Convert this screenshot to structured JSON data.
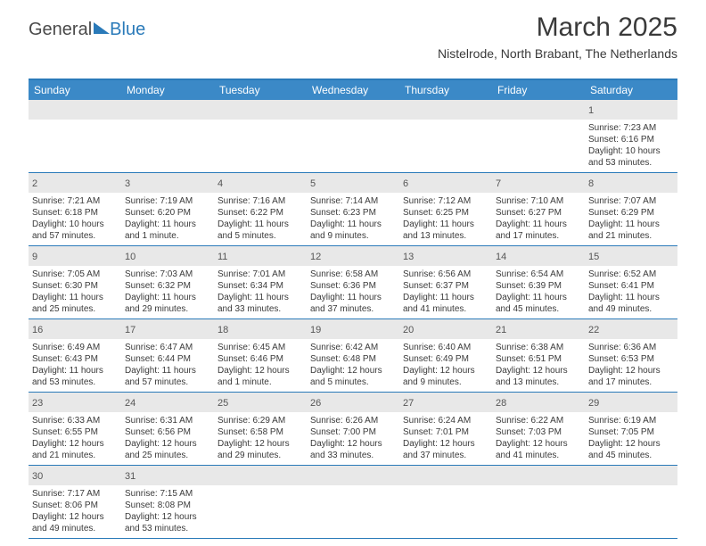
{
  "logo": {
    "text1": "General",
    "text2": "Blue"
  },
  "title": "March 2025",
  "location": "Nistelrode, North Brabant, The Netherlands",
  "day_headers": [
    "Sunday",
    "Monday",
    "Tuesday",
    "Wednesday",
    "Thursday",
    "Friday",
    "Saturday"
  ],
  "colors": {
    "accent": "#2a7ab9",
    "header_bg": "#3b89c7",
    "daynum_bg": "#e8e8e8",
    "text": "#3a3a3a"
  },
  "weeks": [
    [
      null,
      null,
      null,
      null,
      null,
      null,
      {
        "n": "1",
        "sr": "7:23 AM",
        "ss": "6:16 PM",
        "dl": "10 hours and 53 minutes."
      }
    ],
    [
      {
        "n": "2",
        "sr": "7:21 AM",
        "ss": "6:18 PM",
        "dl": "10 hours and 57 minutes."
      },
      {
        "n": "3",
        "sr": "7:19 AM",
        "ss": "6:20 PM",
        "dl": "11 hours and 1 minute."
      },
      {
        "n": "4",
        "sr": "7:16 AM",
        "ss": "6:22 PM",
        "dl": "11 hours and 5 minutes."
      },
      {
        "n": "5",
        "sr": "7:14 AM",
        "ss": "6:23 PM",
        "dl": "11 hours and 9 minutes."
      },
      {
        "n": "6",
        "sr": "7:12 AM",
        "ss": "6:25 PM",
        "dl": "11 hours and 13 minutes."
      },
      {
        "n": "7",
        "sr": "7:10 AM",
        "ss": "6:27 PM",
        "dl": "11 hours and 17 minutes."
      },
      {
        "n": "8",
        "sr": "7:07 AM",
        "ss": "6:29 PM",
        "dl": "11 hours and 21 minutes."
      }
    ],
    [
      {
        "n": "9",
        "sr": "7:05 AM",
        "ss": "6:30 PM",
        "dl": "11 hours and 25 minutes."
      },
      {
        "n": "10",
        "sr": "7:03 AM",
        "ss": "6:32 PM",
        "dl": "11 hours and 29 minutes."
      },
      {
        "n": "11",
        "sr": "7:01 AM",
        "ss": "6:34 PM",
        "dl": "11 hours and 33 minutes."
      },
      {
        "n": "12",
        "sr": "6:58 AM",
        "ss": "6:36 PM",
        "dl": "11 hours and 37 minutes."
      },
      {
        "n": "13",
        "sr": "6:56 AM",
        "ss": "6:37 PM",
        "dl": "11 hours and 41 minutes."
      },
      {
        "n": "14",
        "sr": "6:54 AM",
        "ss": "6:39 PM",
        "dl": "11 hours and 45 minutes."
      },
      {
        "n": "15",
        "sr": "6:52 AM",
        "ss": "6:41 PM",
        "dl": "11 hours and 49 minutes."
      }
    ],
    [
      {
        "n": "16",
        "sr": "6:49 AM",
        "ss": "6:43 PM",
        "dl": "11 hours and 53 minutes."
      },
      {
        "n": "17",
        "sr": "6:47 AM",
        "ss": "6:44 PM",
        "dl": "11 hours and 57 minutes."
      },
      {
        "n": "18",
        "sr": "6:45 AM",
        "ss": "6:46 PM",
        "dl": "12 hours and 1 minute."
      },
      {
        "n": "19",
        "sr": "6:42 AM",
        "ss": "6:48 PM",
        "dl": "12 hours and 5 minutes."
      },
      {
        "n": "20",
        "sr": "6:40 AM",
        "ss": "6:49 PM",
        "dl": "12 hours and 9 minutes."
      },
      {
        "n": "21",
        "sr": "6:38 AM",
        "ss": "6:51 PM",
        "dl": "12 hours and 13 minutes."
      },
      {
        "n": "22",
        "sr": "6:36 AM",
        "ss": "6:53 PM",
        "dl": "12 hours and 17 minutes."
      }
    ],
    [
      {
        "n": "23",
        "sr": "6:33 AM",
        "ss": "6:55 PM",
        "dl": "12 hours and 21 minutes."
      },
      {
        "n": "24",
        "sr": "6:31 AM",
        "ss": "6:56 PM",
        "dl": "12 hours and 25 minutes."
      },
      {
        "n": "25",
        "sr": "6:29 AM",
        "ss": "6:58 PM",
        "dl": "12 hours and 29 minutes."
      },
      {
        "n": "26",
        "sr": "6:26 AM",
        "ss": "7:00 PM",
        "dl": "12 hours and 33 minutes."
      },
      {
        "n": "27",
        "sr": "6:24 AM",
        "ss": "7:01 PM",
        "dl": "12 hours and 37 minutes."
      },
      {
        "n": "28",
        "sr": "6:22 AM",
        "ss": "7:03 PM",
        "dl": "12 hours and 41 minutes."
      },
      {
        "n": "29",
        "sr": "6:19 AM",
        "ss": "7:05 PM",
        "dl": "12 hours and 45 minutes."
      }
    ],
    [
      {
        "n": "30",
        "sr": "7:17 AM",
        "ss": "8:06 PM",
        "dl": "12 hours and 49 minutes."
      },
      {
        "n": "31",
        "sr": "7:15 AM",
        "ss": "8:08 PM",
        "dl": "12 hours and 53 minutes."
      },
      null,
      null,
      null,
      null,
      null
    ]
  ]
}
